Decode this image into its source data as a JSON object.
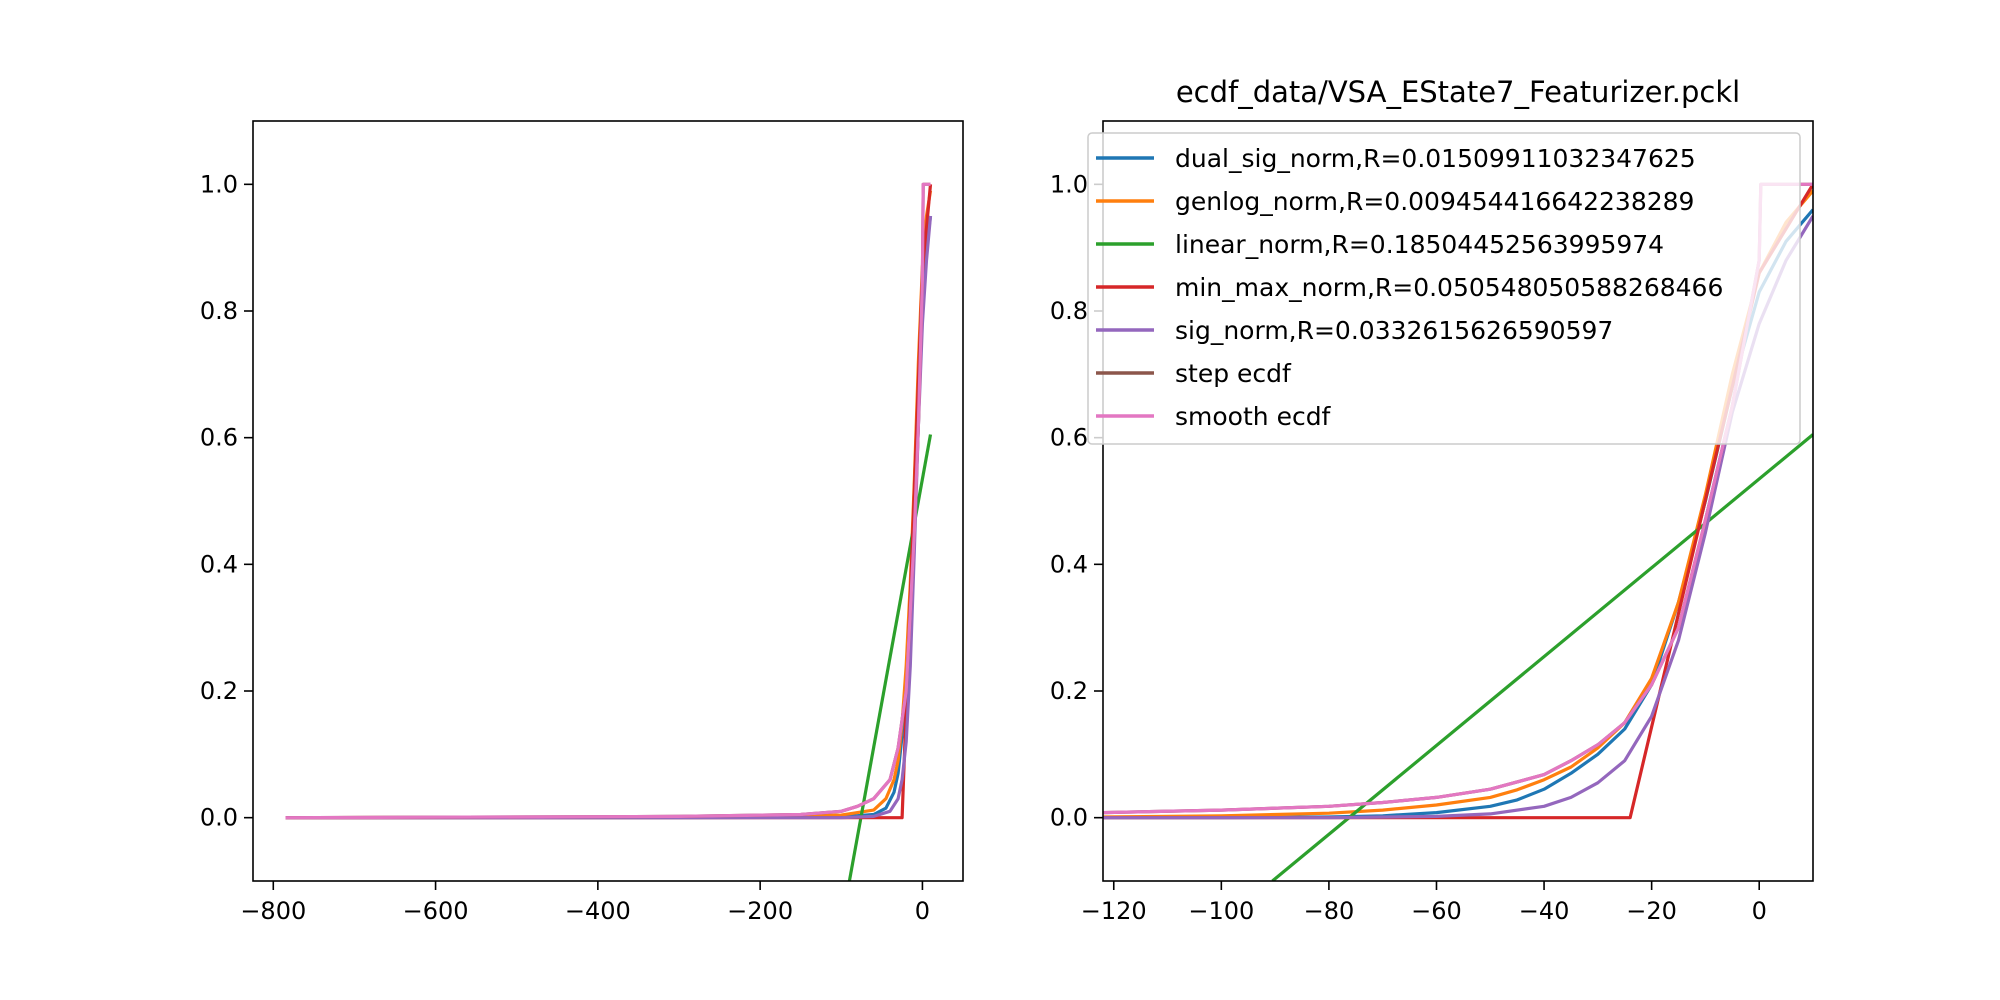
{
  "chart_data": [
    {
      "type": "line",
      "title": "",
      "xlabel": "",
      "ylabel": "",
      "xlim": [
        -825,
        50
      ],
      "ylim": [
        -0.1,
        1.1
      ],
      "xticks": [
        -800,
        -600,
        -400,
        -200,
        0
      ],
      "yticks": [
        0.0,
        0.2,
        0.4,
        0.6,
        0.8,
        1.0
      ],
      "x_tick_labels": [
        "−800",
        "−600",
        "−400",
        "−200",
        "0"
      ],
      "y_tick_labels": [
        "0.0",
        "0.2",
        "0.4",
        "0.6",
        "0.8",
        "1.0"
      ],
      "legend": "none",
      "series": [
        {
          "color": "#1f77b4",
          "x": [
            -785,
            -300,
            -100,
            -60,
            -45,
            -35,
            -30,
            -25,
            -20,
            -15,
            -10,
            -5,
            0,
            5,
            10
          ],
          "y": [
            0.0,
            0.0,
            0.001,
            0.005,
            0.015,
            0.04,
            0.07,
            0.13,
            0.22,
            0.35,
            0.52,
            0.7,
            0.83,
            0.9,
            0.95
          ]
        },
        {
          "color": "#ff7f0e",
          "x": [
            -785,
            -300,
            -100,
            -60,
            -45,
            -35,
            -30,
            -25,
            -20,
            -15,
            -10,
            -5,
            0,
            5,
            10
          ],
          "y": [
            0.0,
            0.001,
            0.004,
            0.012,
            0.03,
            0.06,
            0.09,
            0.15,
            0.24,
            0.37,
            0.53,
            0.72,
            0.87,
            0.95,
            0.99
          ]
        },
        {
          "color": "#2ca02c",
          "x": [
            -90,
            10
          ],
          "y": [
            -0.1,
            0.605
          ]
        },
        {
          "color": "#d62728",
          "x": [
            -785,
            -25,
            0,
            10
          ],
          "y": [
            0.0,
            0.0,
            0.86,
            1.0
          ]
        },
        {
          "color": "#9467bd",
          "x": [
            -785,
            -300,
            -100,
            -60,
            -40,
            -30,
            -25,
            -20,
            -15,
            -10,
            -5,
            0,
            5,
            10
          ],
          "y": [
            0.0,
            0.0,
            0.0,
            0.002,
            0.01,
            0.03,
            0.06,
            0.12,
            0.24,
            0.42,
            0.62,
            0.78,
            0.88,
            0.95
          ]
        },
        {
          "color": "#8c564b",
          "x": [
            -785,
            -300,
            -150,
            -100,
            -80,
            -60,
            -40,
            -30,
            -20,
            -10,
            -5,
            0,
            1,
            10
          ],
          "y": [
            0.0,
            0.002,
            0.005,
            0.01,
            0.018,
            0.03,
            0.06,
            0.11,
            0.2,
            0.45,
            0.62,
            0.85,
            1.0,
            1.0
          ]
        },
        {
          "color": "#e377c2",
          "x": [
            -785,
            -300,
            -150,
            -100,
            -80,
            -60,
            -40,
            -30,
            -20,
            -10,
            -5,
            0,
            1,
            10
          ],
          "y": [
            0.0,
            0.002,
            0.005,
            0.01,
            0.018,
            0.03,
            0.06,
            0.11,
            0.2,
            0.45,
            0.62,
            0.85,
            1.0,
            1.0
          ]
        }
      ]
    },
    {
      "type": "line",
      "title": "ecdf_data/VSA_EState7_Featurizer.pckl",
      "xlabel": "",
      "ylabel": "",
      "xlim": [
        -122,
        10
      ],
      "ylim": [
        -0.1,
        1.1
      ],
      "xticks": [
        -120,
        -100,
        -80,
        -60,
        -40,
        -20,
        0
      ],
      "yticks": [
        0.0,
        0.2,
        0.4,
        0.6,
        0.8,
        1.0
      ],
      "x_tick_labels": [
        "−120",
        "−100",
        "−80",
        "−60",
        "−40",
        "−20",
        "0"
      ],
      "y_tick_labels": [
        "0.0",
        "0.2",
        "0.4",
        "0.6",
        "0.8",
        "1.0"
      ],
      "legend": "upper-left",
      "series": [
        {
          "name": "dual_sig_norm,R=0.01509911032347625",
          "color": "#1f77b4",
          "x": [
            -122,
            -100,
            -80,
            -70,
            -60,
            -50,
            -45,
            -40,
            -35,
            -30,
            -25,
            -20,
            -15,
            -10,
            -5,
            0,
            5,
            10
          ],
          "y": [
            0.0,
            0.0,
            0.001,
            0.003,
            0.008,
            0.018,
            0.028,
            0.045,
            0.07,
            0.1,
            0.14,
            0.21,
            0.34,
            0.5,
            0.68,
            0.83,
            0.91,
            0.96
          ]
        },
        {
          "name": "genlog_norm,R=0.009454416642238289",
          "color": "#ff7f0e",
          "x": [
            -122,
            -100,
            -80,
            -70,
            -60,
            -50,
            -45,
            -40,
            -35,
            -30,
            -25,
            -20,
            -15,
            -10,
            -5,
            0,
            5,
            10
          ],
          "y": [
            0.001,
            0.003,
            0.007,
            0.012,
            0.02,
            0.032,
            0.044,
            0.06,
            0.08,
            0.11,
            0.15,
            0.22,
            0.34,
            0.51,
            0.7,
            0.86,
            0.94,
            0.99
          ]
        },
        {
          "name": "linear_norm,R=0.18504452563995974",
          "color": "#2ca02c",
          "x": [
            -90.5,
            10
          ],
          "y": [
            -0.1,
            0.605
          ]
        },
        {
          "name": "min_max_norm,R=0.050548050588268466",
          "color": "#d62728",
          "x": [
            -122,
            -24,
            0,
            10
          ],
          "y": [
            0.0,
            0.0,
            0.86,
            1.0
          ]
        },
        {
          "name": "sig_norm,R=0.0332615626590597",
          "color": "#9467bd",
          "x": [
            -122,
            -80,
            -60,
            -50,
            -40,
            -35,
            -30,
            -25,
            -20,
            -15,
            -10,
            -5,
            0,
            5,
            10
          ],
          "y": [
            0.0,
            0.0,
            0.002,
            0.006,
            0.018,
            0.032,
            0.055,
            0.09,
            0.16,
            0.28,
            0.45,
            0.64,
            0.78,
            0.88,
            0.95
          ]
        },
        {
          "name": "step ecdf",
          "color": "#8c564b",
          "x": [
            -122,
            -100,
            -80,
            -70,
            -60,
            -50,
            -40,
            -35,
            -30,
            -25,
            -20,
            -15,
            -10,
            -5,
            0,
            0.3,
            10
          ],
          "y": [
            0.008,
            0.012,
            0.018,
            0.024,
            0.032,
            0.045,
            0.068,
            0.09,
            0.115,
            0.15,
            0.21,
            0.3,
            0.47,
            0.65,
            0.88,
            1.0,
            1.0
          ]
        },
        {
          "name": "smooth ecdf",
          "color": "#e377c2",
          "x": [
            -122,
            -100,
            -80,
            -70,
            -60,
            -50,
            -40,
            -35,
            -30,
            -25,
            -20,
            -15,
            -10,
            -5,
            0,
            0.3,
            10
          ],
          "y": [
            0.008,
            0.012,
            0.018,
            0.024,
            0.032,
            0.045,
            0.068,
            0.09,
            0.115,
            0.15,
            0.21,
            0.3,
            0.47,
            0.65,
            0.88,
            1.0,
            1.0
          ]
        }
      ]
    }
  ]
}
